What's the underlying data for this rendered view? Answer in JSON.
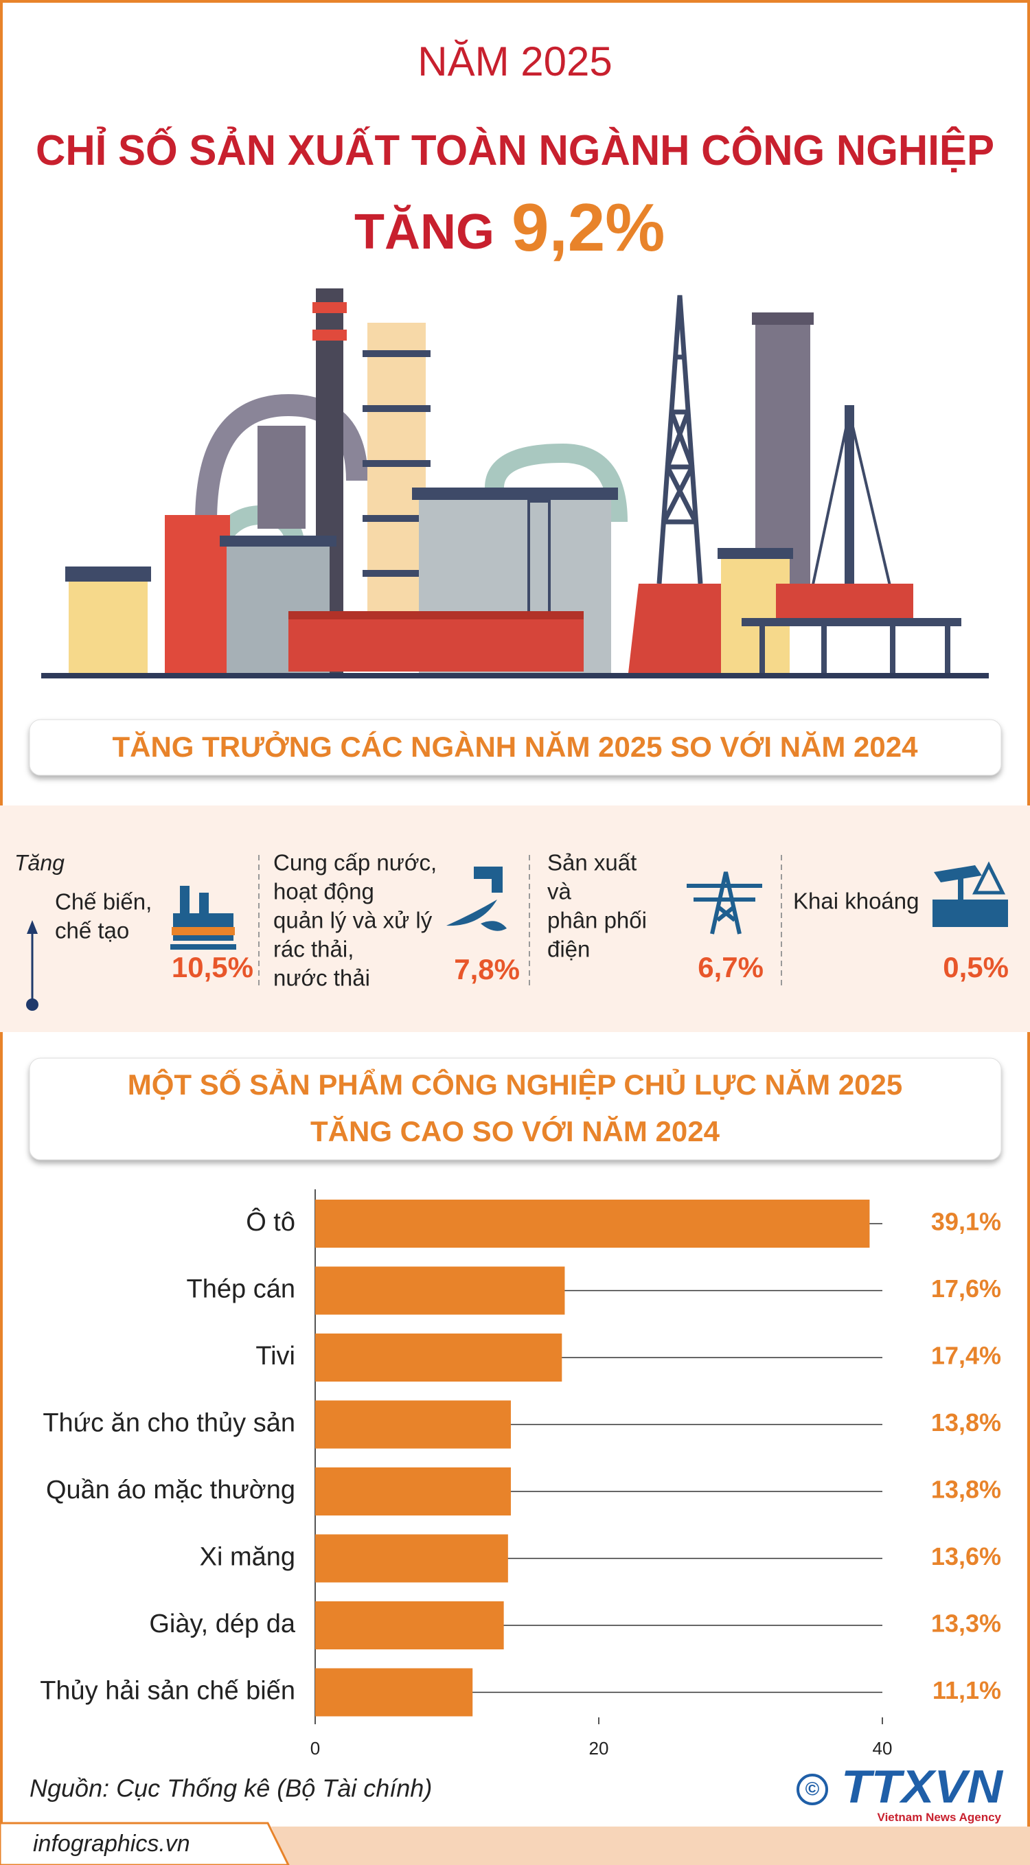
{
  "header": {
    "year": "NĂM 2025",
    "title": "CHỈ SỐ SẢN XUẤT TOÀN NGÀNH CÔNG NGHIỆP",
    "increase_label": "TĂNG",
    "increase_value": "9,2%"
  },
  "sectors": {
    "title": "TĂNG TRƯỞNG CÁC NGÀNH NĂM 2025 SO VỚI NĂM 2024",
    "axis_label": "Tăng",
    "items": [
      {
        "lines": [
          "Chế biến,",
          "chế tạo"
        ],
        "value": "10,5%"
      },
      {
        "lines": [
          "Cung cấp nước,",
          "hoạt động",
          "quản lý và xử lý",
          "rác thải,",
          "nước thải"
        ],
        "value": "7,8%"
      },
      {
        "lines": [
          "Sản xuất",
          "và",
          "phân phối",
          "điện"
        ],
        "value": "6,7%"
      },
      {
        "lines": [
          "Khai khoáng"
        ],
        "value": "0,5%"
      }
    ]
  },
  "chart_data": {
    "type": "bar",
    "orientation": "horizontal",
    "title": "MỘT SỐ SẢN PHẨM CÔNG NGHIỆP CHỦ LỰC NĂM 2025",
    "subtitle": "TĂNG CAO SO VỚI NĂM 2024",
    "categories": [
      "Ô tô",
      "Thép cán",
      "Tivi",
      "Thức ăn cho thủy sản",
      "Quần áo mặc thường",
      "Xi măng",
      "Giày, dép da",
      "Thủy hải sản chế biến"
    ],
    "values": [
      39.1,
      17.6,
      17.4,
      13.8,
      13.8,
      13.6,
      13.3,
      11.1
    ],
    "value_labels": [
      "39,1%",
      "17,6%",
      "17,4%",
      "13,8%",
      "13,8%",
      "13,6%",
      "13,3%",
      "11,1%"
    ],
    "color": "#e8832a",
    "xlim": [
      0,
      40
    ],
    "xticks": [
      0,
      20,
      40
    ]
  },
  "source": "Nguồn: Cục Thống kê (Bộ Tài chính)",
  "logo": {
    "name": "TTXVN",
    "tagline": "Vietnam News Agency"
  },
  "footer": "infographics.vn"
}
